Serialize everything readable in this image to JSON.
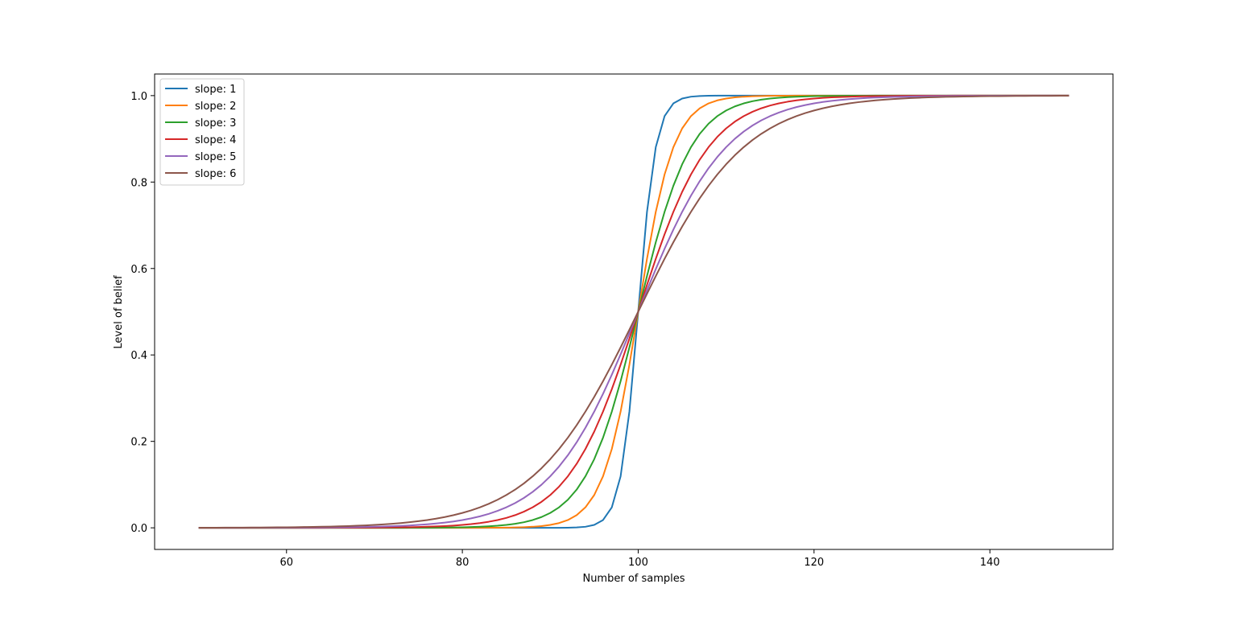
{
  "chart_data": {
    "type": "line",
    "title": "",
    "xlabel": "Number of samples",
    "ylabel": "Level of belief",
    "xlim": [
      45,
      154
    ],
    "ylim": [
      -0.05,
      1.05
    ],
    "x_ticks": [
      60,
      80,
      100,
      120,
      140
    ],
    "y_ticks": [
      0.0,
      0.2,
      0.4,
      0.6,
      0.8,
      1.0
    ],
    "x_tick_labels": [
      "60",
      "80",
      "100",
      "120",
      "140"
    ],
    "y_tick_labels": [
      "0.0",
      "0.2",
      "0.4",
      "0.6",
      "0.8",
      "1.0"
    ],
    "grid": false,
    "legend_position": "upper-left",
    "x_range": [
      50,
      149
    ],
    "sigmoid_midpoint": 100,
    "series": [
      {
        "name": "slope: 1",
        "slope": 1,
        "color": "#1f77b4"
      },
      {
        "name": "slope: 2",
        "slope": 2,
        "color": "#ff7f0e"
      },
      {
        "name": "slope: 3",
        "slope": 3,
        "color": "#2ca02c"
      },
      {
        "name": "slope: 4",
        "slope": 4,
        "color": "#d62728"
      },
      {
        "name": "slope: 5",
        "slope": 5,
        "color": "#9467bd"
      },
      {
        "name": "slope: 6",
        "slope": 6,
        "color": "#8c564b"
      }
    ]
  }
}
